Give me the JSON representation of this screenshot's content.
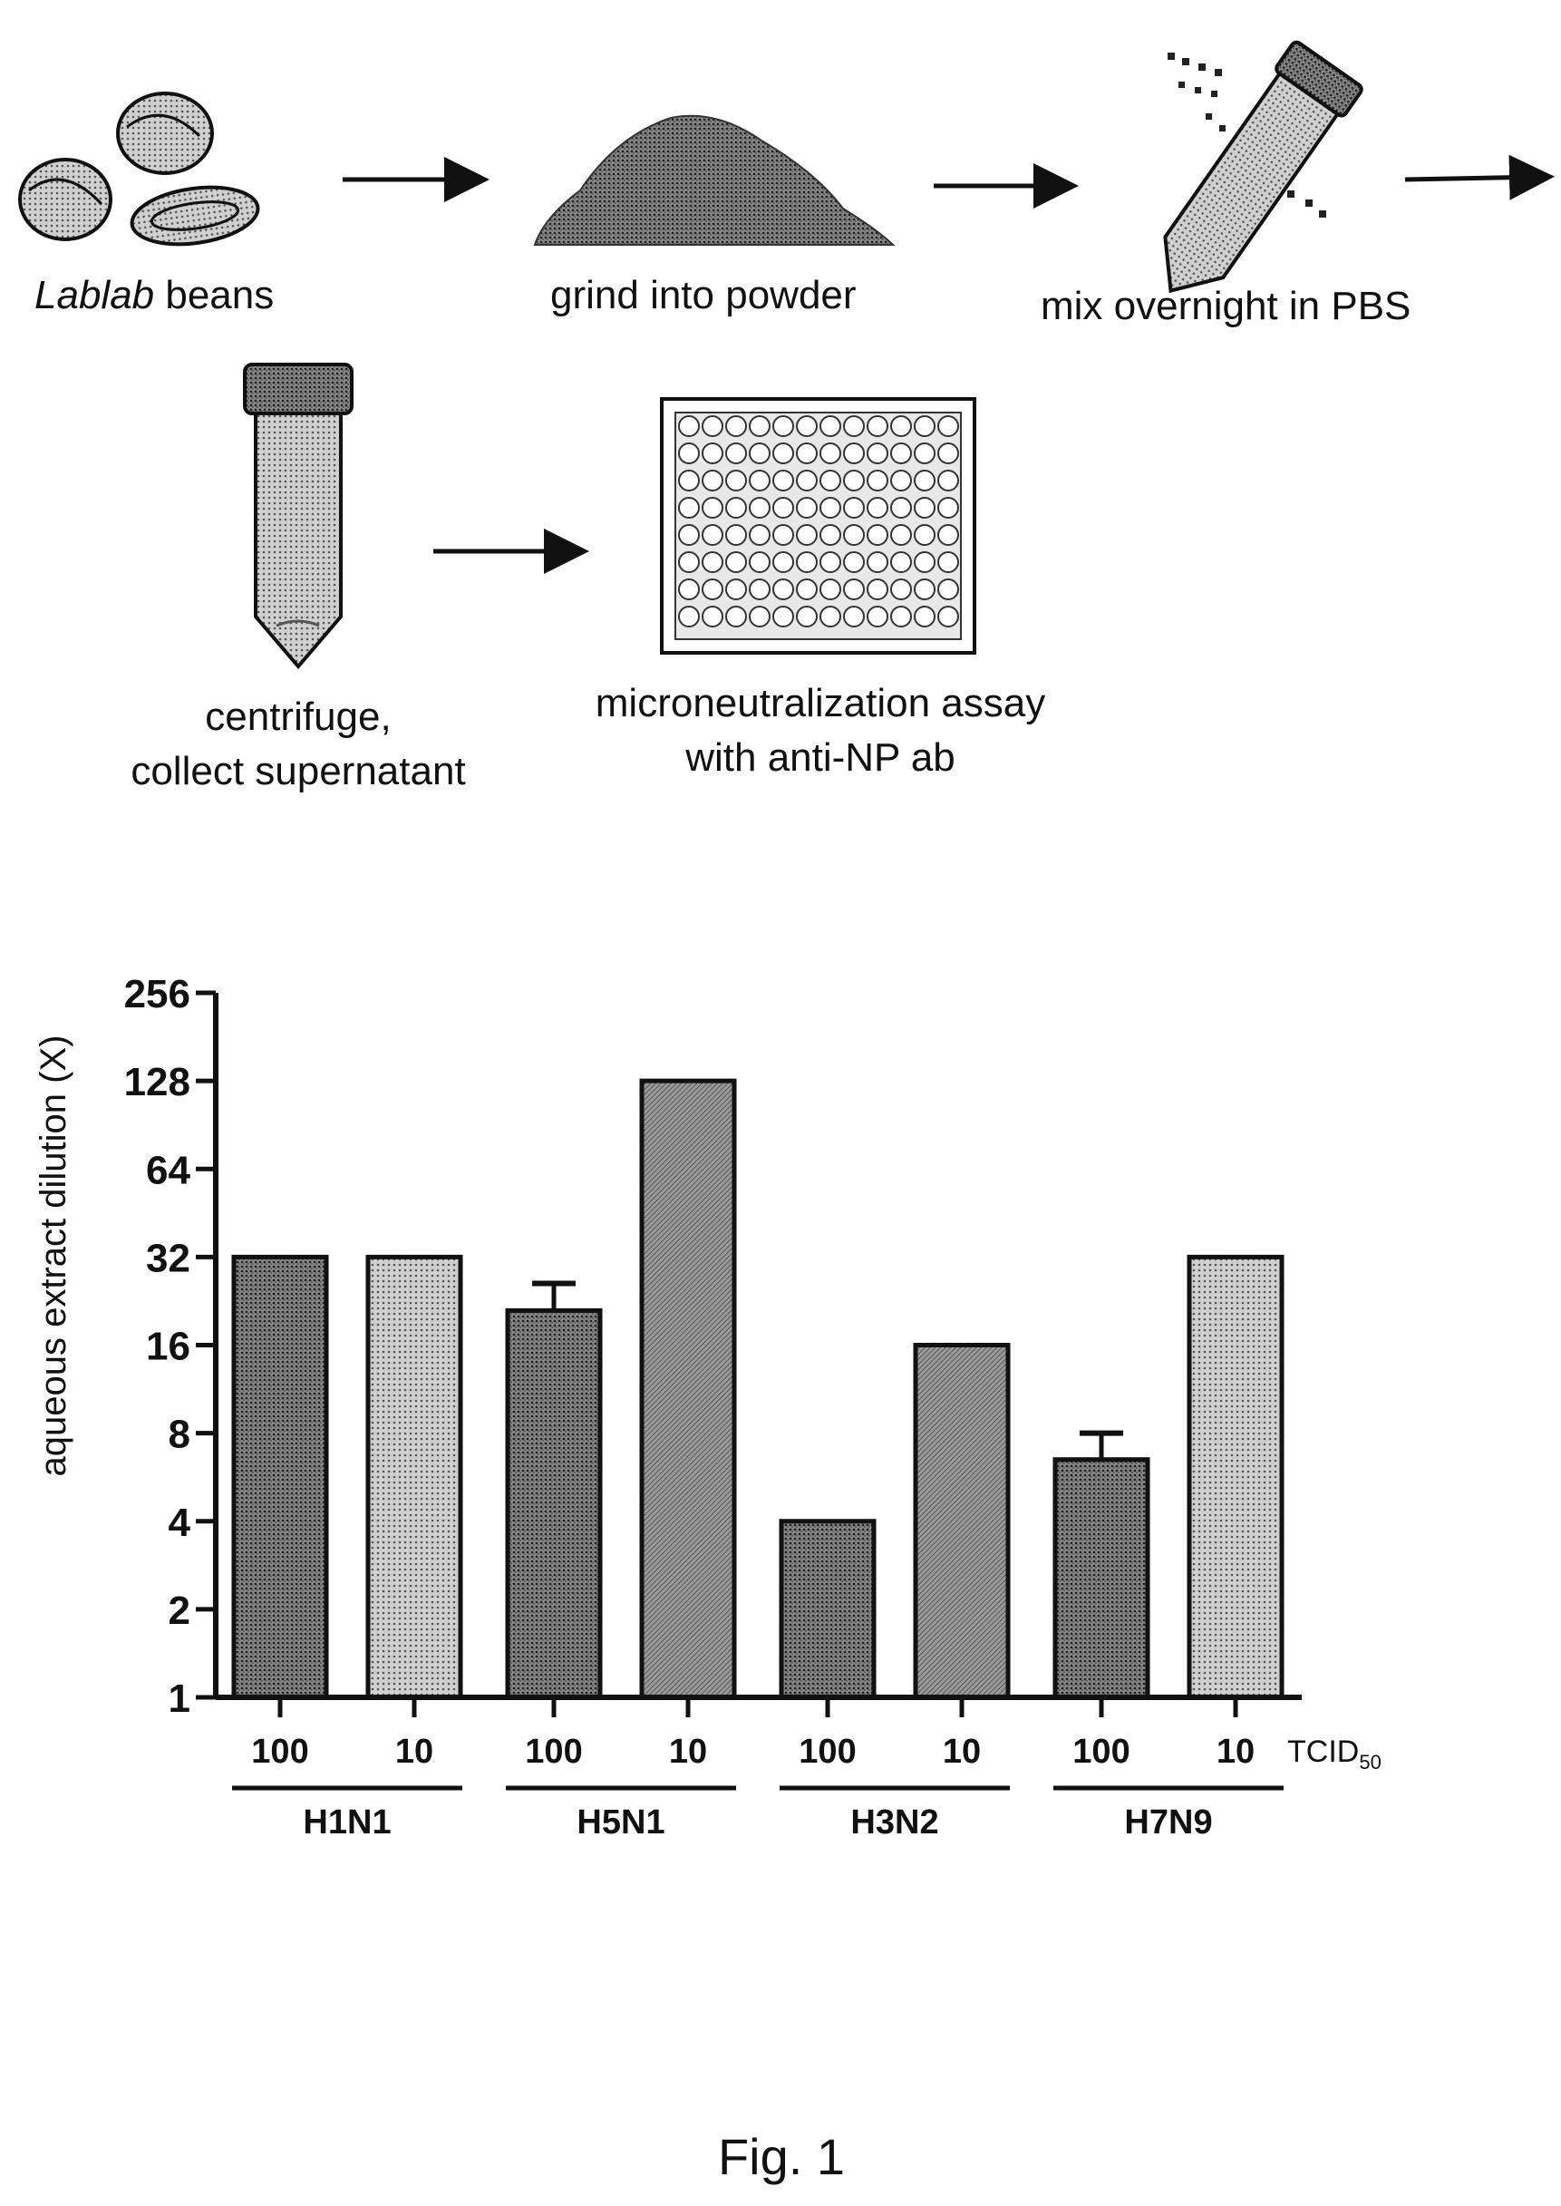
{
  "workflow": {
    "steps": [
      {
        "label": "Lablab beans",
        "label_italic": "Lablab",
        "label_rest": " beans"
      },
      {
        "label": "grind into powder"
      },
      {
        "label": "mix overnight in PBS"
      },
      {
        "label_line1": "centrifuge,",
        "label_line2": "collect supernatant"
      },
      {
        "label_line1": "microneutralization assay",
        "label_line2": "with anti-NP ab"
      }
    ],
    "icons": [
      "beans-icon",
      "powder-pile-icon",
      "tube-pouring-icon",
      "centrifuge-tube-icon",
      "well-plate-icon"
    ]
  },
  "chart_data": {
    "type": "bar",
    "ylabel": "aqueous extract dilution (X)",
    "yscale": "log2",
    "ylim": [
      1,
      256
    ],
    "yticks": [
      "1",
      "2",
      "4",
      "8",
      "16",
      "32",
      "64",
      "128",
      "256"
    ],
    "x_unit_label": "TCID",
    "x_unit_subscript": "50",
    "groups": [
      {
        "name": "H1N1",
        "bars": [
          {
            "tcid": "100",
            "value": 32,
            "error": null,
            "shade": "dark"
          },
          {
            "tcid": "10",
            "value": 32,
            "error": null,
            "shade": "light"
          }
        ]
      },
      {
        "name": "H5N1",
        "bars": [
          {
            "tcid": "100",
            "value": 21,
            "error": 26,
            "shade": "dark"
          },
          {
            "tcid": "10",
            "value": 128,
            "error": null,
            "shade": "medium"
          }
        ]
      },
      {
        "name": "H3N2",
        "bars": [
          {
            "tcid": "100",
            "value": 4,
            "error": null,
            "shade": "dark"
          },
          {
            "tcid": "10",
            "value": 16,
            "error": null,
            "shade": "medium"
          }
        ]
      },
      {
        "name": "H7N9",
        "bars": [
          {
            "tcid": "100",
            "value": 6.5,
            "error": 8,
            "shade": "dark"
          },
          {
            "tcid": "10",
            "value": 32,
            "error": null,
            "shade": "light"
          }
        ]
      }
    ],
    "colors": {
      "dark": "#4a4a4a",
      "medium": "#8a8a8a",
      "light": "#c8c8c8"
    }
  },
  "caption": "Fig. 1"
}
